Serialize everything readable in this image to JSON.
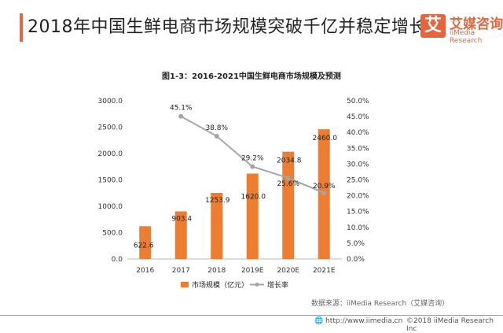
{
  "header": {
    "title": "2018年中国生鲜电商市场规模突破千亿并稳定增长",
    "logo_mark": "艾",
    "logo_cn": "艾媒咨询",
    "logo_en": "iiMedia Research"
  },
  "chart_data": {
    "type": "bar+line",
    "title": "图1-3：2016-2021中国生鲜电商市场规模及预测",
    "categories": [
      "2016",
      "2017",
      "2018",
      "2019E",
      "2020E",
      "2021E"
    ],
    "series": [
      {
        "name": "市场规模（亿元）",
        "type": "bar",
        "axis": "left",
        "color": "#ed7d31",
        "values": [
          622.6,
          903.4,
          1253.9,
          1620.0,
          2034.8,
          2460.0
        ],
        "labels": [
          "622.6",
          "903.4",
          "1253.9",
          "1620.0",
          "2034.8",
          "2460.0"
        ]
      },
      {
        "name": "增长率",
        "type": "line",
        "axis": "right",
        "color": "#a5a5a5",
        "values": [
          null,
          45.1,
          38.8,
          29.2,
          25.6,
          20.9
        ],
        "labels": [
          "",
          "45.1%",
          "38.8%",
          "29.2%",
          "25.6%",
          "20.9%"
        ]
      }
    ],
    "left_axis": {
      "ylim": [
        0,
        3000
      ],
      "ticks": [
        "0.0",
        "500.0",
        "1000.0",
        "1500.0",
        "2000.0",
        "2500.0",
        "3000.0"
      ]
    },
    "right_axis": {
      "ylim": [
        0,
        50
      ],
      "ticks": [
        "0.0%",
        "5.0%",
        "10.0%",
        "15.0%",
        "20.0%",
        "25.0%",
        "30.0%",
        "35.0%",
        "40.0%",
        "45.0%",
        "50.0%"
      ]
    },
    "grid": false,
    "legend": "bottom"
  },
  "footer": {
    "source": "数据来源：iiMedia Research（艾媒咨询）",
    "url": "http://www.iimedia.cn",
    "copyright": "©2018  iiMedia Research  Inc"
  }
}
